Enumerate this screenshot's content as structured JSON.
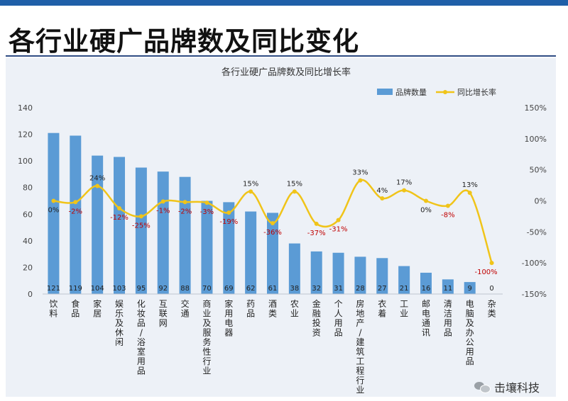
{
  "page": {
    "title": "各行业硬广品牌数及同比变化"
  },
  "footer": {
    "brand": "击壤科技",
    "icon": "wechat-icon"
  },
  "colors": {
    "bar": "#5b9bd5",
    "line": "#f0c419",
    "negative_label": "#c00000",
    "axis_text": "#444444",
    "grid": "#d9dde4"
  },
  "chart_data": {
    "type": "bar",
    "title": "各行业硬广品牌数及同比增长率",
    "categories": [
      "饮料",
      "食品",
      "家居",
      "娱乐及休闲",
      "化妆品/浴室用品",
      "互联网",
      "交通",
      "商业及服务性行业",
      "家用电器",
      "药品",
      "酒类",
      "农业",
      "金融投资",
      "个人用品",
      "房地产/建筑工程行业",
      "衣着",
      "工业",
      "邮电通讯",
      "清洁用品",
      "电脑及办公用品",
      "杂类"
    ],
    "series": [
      {
        "name": "品牌数量",
        "type": "bar",
        "axis": "left",
        "values": [
          121,
          119,
          104,
          103,
          95,
          92,
          88,
          70,
          69,
          62,
          61,
          38,
          32,
          31,
          28,
          27,
          21,
          16,
          11,
          9,
          0
        ]
      },
      {
        "name": "同比增长率",
        "type": "line",
        "axis": "right",
        "unit": "%",
        "values": [
          0,
          -2,
          24,
          -12,
          -25,
          -1,
          -2,
          -3,
          -19,
          15,
          -36,
          15,
          -37,
          -31,
          33,
          4,
          17,
          0,
          -8,
          13,
          -100
        ]
      }
    ],
    "bar_labels": [
      "121",
      "119",
      "104",
      "103",
      "95",
      "92",
      "88",
      "70",
      "69",
      "62",
      "61",
      "38",
      "32",
      "31",
      "28",
      "27",
      "21",
      "16",
      "11",
      "9",
      "0"
    ],
    "line_labels": [
      "0%",
      "-2%",
      "24%",
      "-12%",
      "-25%",
      "-1%",
      "-2%",
      "-3%",
      "-19%",
      "15%",
      "-36%",
      "15%",
      "-37%",
      "-31%",
      "33%",
      "4%",
      "17%",
      "0%",
      "-8%",
      "13%",
      "-100%"
    ],
    "y_left": {
      "min": 0,
      "max": 140,
      "ticks": [
        "0",
        "20",
        "40",
        "60",
        "80",
        "100",
        "120",
        "140"
      ]
    },
    "y_right": {
      "min": -150,
      "max": 150,
      "ticks": [
        "-150%",
        "-100%",
        "-50%",
        "0%",
        "50%",
        "100%",
        "150%"
      ]
    },
    "legend": {
      "position": "top-right",
      "items": [
        "品牌数量",
        "同比增长率"
      ]
    },
    "grid": false
  }
}
